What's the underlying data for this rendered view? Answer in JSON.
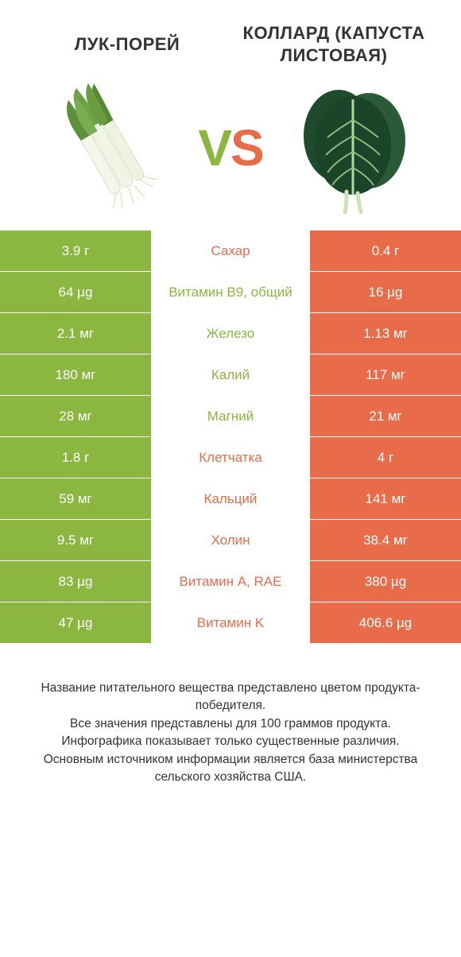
{
  "colors": {
    "left": "#8bb63f",
    "right": "#e86c49",
    "text": "#333333",
    "white": "#ffffff"
  },
  "header": {
    "left_title": "ЛУК-ПОРЕЙ",
    "right_title": "КОЛЛАРД (КАПУСТА ЛИСТОВАЯ)",
    "vs_v": "V",
    "vs_s": "S"
  },
  "table": {
    "left_bg": "#8bb63f",
    "right_bg": "#e86c49",
    "rows": [
      {
        "left": "3.9 г",
        "label": "Сахар",
        "right": "0.4 г",
        "mid_color": "#e86c49"
      },
      {
        "left": "64 µg",
        "label": "Витамин B9, общий",
        "right": "16 µg",
        "mid_color": "#8bb63f"
      },
      {
        "left": "2.1 мг",
        "label": "Железо",
        "right": "1.13 мг",
        "mid_color": "#8bb63f"
      },
      {
        "left": "180 мг",
        "label": "Калий",
        "right": "117 мг",
        "mid_color": "#8bb63f"
      },
      {
        "left": "28 мг",
        "label": "Магний",
        "right": "21 мг",
        "mid_color": "#8bb63f"
      },
      {
        "left": "1.8 г",
        "label": "Клетчатка",
        "right": "4 г",
        "mid_color": "#e86c49"
      },
      {
        "left": "59 мг",
        "label": "Кальций",
        "right": "141 мг",
        "mid_color": "#e86c49"
      },
      {
        "left": "9.5 мг",
        "label": "Холин",
        "right": "38.4 мг",
        "mid_color": "#e86c49"
      },
      {
        "left": "83 µg",
        "label": "Витамин A, RAE",
        "right": "380 µg",
        "mid_color": "#e86c49"
      },
      {
        "left": "47 µg",
        "label": "Витамин K",
        "right": "406.6 µg",
        "mid_color": "#e86c49"
      }
    ]
  },
  "footer": {
    "line1": "Название питательного вещества представлено цветом продукта-победителя.",
    "line2": "Все значения представлены для 100 граммов продукта.",
    "line3": "Инфографика показывает только существенные различия.",
    "line4": "Основным источником информации является база министерства сельского хозяйства США."
  }
}
